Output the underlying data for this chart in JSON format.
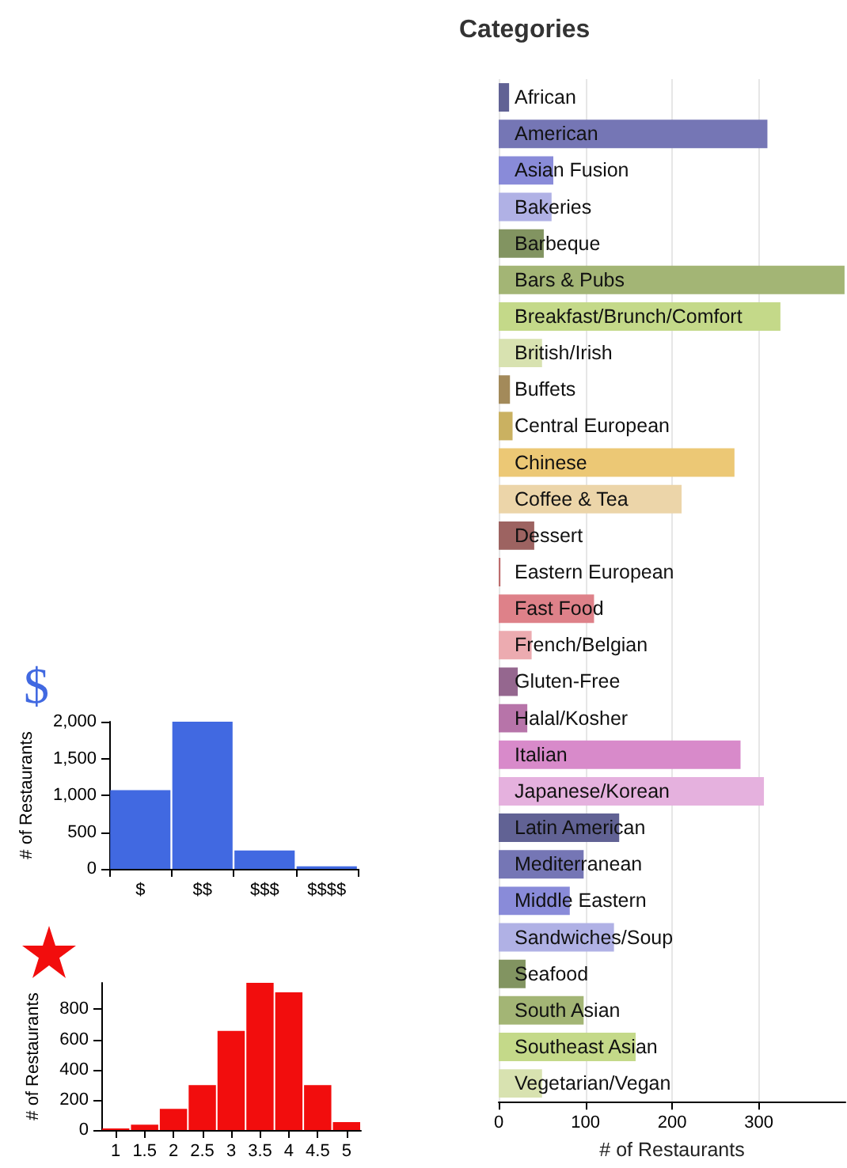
{
  "chart_data": [
    {
      "type": "bar",
      "orientation": "horizontal",
      "title": "Categories",
      "xlabel": "# of Restaurants",
      "categories": [
        "African",
        "American",
        "Asian Fusion",
        "Bakeries",
        "Barbeque",
        "Bars & Pubs",
        "Breakfast/Brunch/Comfort",
        "British/Irish",
        "Buffets",
        "Central European",
        "Chinese",
        "Coffee & Tea",
        "Dessert",
        "Eastern European",
        "Fast Food",
        "French/Belgian",
        "Gluten-Free",
        "Halal/Kosher",
        "Italian",
        "Japanese/Korean",
        "Latin American",
        "Mediterranean",
        "Middle Eastern",
        "Sandwiches/Soup",
        "Seafood",
        "South Asian",
        "Southeast Asian",
        "Vegetarian/Vegan"
      ],
      "values": [
        12,
        310,
        63,
        61,
        52,
        399,
        325,
        50,
        13,
        16,
        272,
        211,
        41,
        2,
        110,
        38,
        22,
        33,
        279,
        306,
        139,
        98,
        82,
        133,
        31,
        98,
        158,
        50
      ],
      "colors": [
        "#616294",
        "#7576b5",
        "#898bd9",
        "#b0b1e5",
        "#829461",
        "#a3b575",
        "#c4d989",
        "#d8e2b0",
        "#a38a5a",
        "#cab161",
        "#ecc875",
        "#ecd5a9",
        "#9d6361",
        "#bd6d6e",
        "#de8189",
        "#ecabb0",
        "#95678f",
        "#b774a9",
        "#d88aca",
        "#e5b1de",
        "#616294",
        "#7576b5",
        "#898bd9",
        "#b0b1e5",
        "#829461",
        "#a3b575",
        "#c4d989",
        "#d8e2b0"
      ],
      "xlim": [
        0,
        400
      ],
      "xticks": [
        0,
        100,
        200,
        300
      ],
      "grid": "x"
    },
    {
      "type": "bar",
      "title": "$",
      "ylabel": "# of Restaurants",
      "categories": [
        "$",
        "$$",
        "$$$",
        "$$$$"
      ],
      "values": [
        1070,
        2000,
        250,
        35
      ],
      "color": "#4169e1",
      "ylim": [
        0,
        2000
      ],
      "yticks": [
        0,
        500,
        {
          "value": 1000,
          "label": "1,000"
        },
        {
          "value": 1500,
          "label": "1,500"
        },
        {
          "value": 2000,
          "label": "2,000"
        }
      ]
    },
    {
      "type": "histogram",
      "ylabel": "# of Restaurants",
      "bins": [
        0.75,
        1.25,
        1.75,
        2.25,
        2.75,
        3.25,
        3.75,
        4.25,
        4.75,
        5.25
      ],
      "values": [
        10,
        35,
        140,
        298,
        656,
        975,
        912,
        298,
        53
      ],
      "color": "#f20d0d",
      "xlim": [
        0.75,
        5.25
      ],
      "xticks": [
        1,
        1.5,
        2,
        2.5,
        3,
        3.5,
        4,
        4.5,
        5
      ],
      "ylim": [
        0,
        975
      ],
      "yticks": [
        0,
        200,
        400,
        600,
        800
      ]
    }
  ]
}
